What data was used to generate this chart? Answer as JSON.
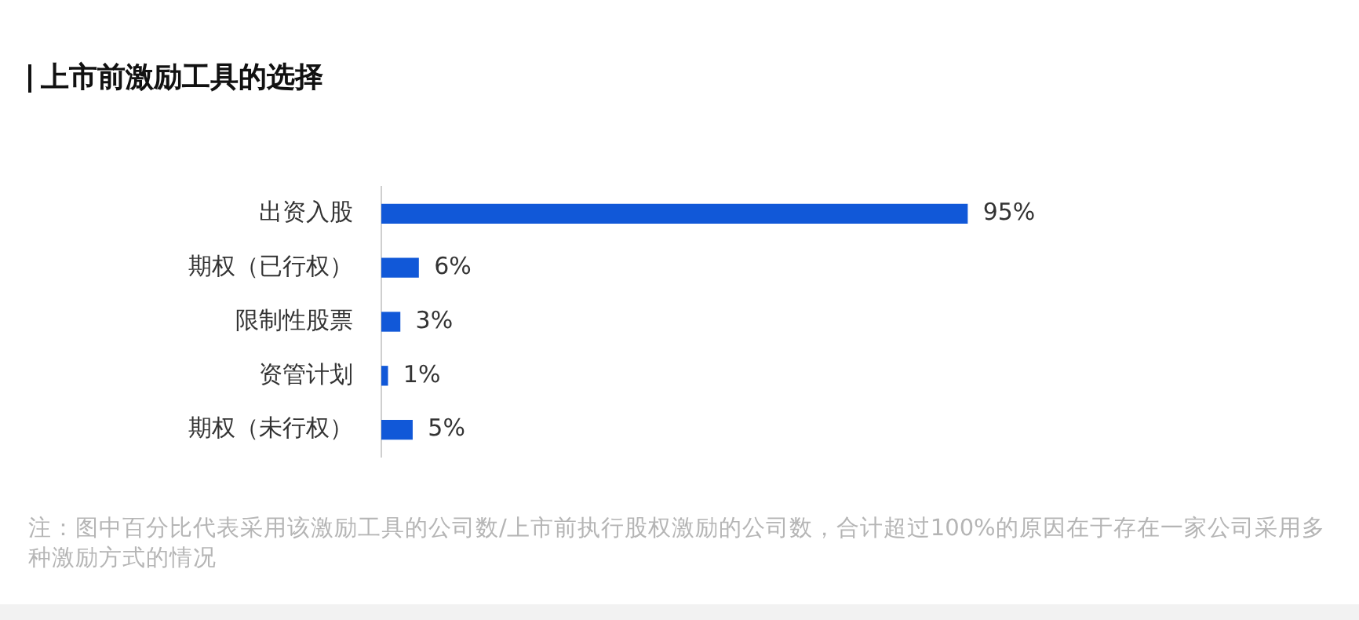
{
  "chart_data": {
    "type": "bar",
    "orientation": "horizontal",
    "title": "上市前激励工具的选择",
    "categories": [
      "出资入股",
      "期权（已行权）",
      "限制性股票",
      "资管计划",
      "期权（未行权）"
    ],
    "values": [
      95,
      6,
      3,
      1,
      5
    ],
    "color": "#1158d8",
    "value_labels": [
      "95%",
      "6%",
      "3%",
      "1%",
      "5%"
    ],
    "annotations": [
      "注：图中百分比代表采用该激励工具的公司数/上市前执行股权激励的公司数，合计超过100%的原因在于存在一家公司采用多种激励方式的情况"
    ]
  }
}
